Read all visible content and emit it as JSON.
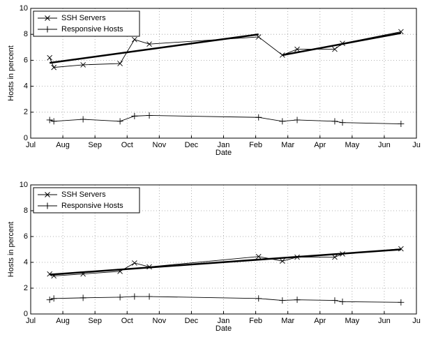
{
  "chart_data": [
    {
      "type": "line",
      "xlabel": "Date",
      "ylabel": "Hosts in percent",
      "xlim": [
        0,
        12
      ],
      "ylim": [
        0,
        10
      ],
      "yticks": [
        0,
        2,
        4,
        6,
        8,
        10
      ],
      "xticks": [
        {
          "value": 0,
          "label": "Jul"
        },
        {
          "value": 1,
          "label": "Aug"
        },
        {
          "value": 2,
          "label": "Sep"
        },
        {
          "value": 3,
          "label": "Oct"
        },
        {
          "value": 4,
          "label": "Nov"
        },
        {
          "value": 5,
          "label": "Dec"
        },
        {
          "value": 6,
          "label": "Jan"
        },
        {
          "value": 7,
          "label": "Feb"
        },
        {
          "value": 8,
          "label": "Mar"
        },
        {
          "value": 9,
          "label": "Apr"
        },
        {
          "value": 10,
          "label": "May"
        },
        {
          "value": 11,
          "label": "Jun"
        },
        {
          "value": 12,
          "label": "Ju"
        }
      ],
      "grid": true,
      "legend": "upper left",
      "series": [
        {
          "name": "SSH Servers",
          "color": "#000000",
          "marker": "x",
          "x": [
            0.59,
            0.72,
            1.63,
            2.78,
            3.23,
            3.69,
            7.09,
            7.83,
            8.29,
            9.46,
            9.7,
            11.52
          ],
          "values": [
            6.2,
            5.45,
            5.65,
            5.75,
            7.6,
            7.25,
            7.8,
            6.4,
            6.85,
            6.85,
            7.3,
            8.2
          ]
        },
        {
          "name": "Responsive Hosts",
          "color": "#000000",
          "marker": "+",
          "x": [
            0.59,
            0.72,
            1.63,
            2.78,
            3.23,
            3.69,
            7.09,
            7.83,
            8.29,
            9.46,
            9.7,
            11.52
          ],
          "values": [
            1.4,
            1.3,
            1.45,
            1.3,
            1.7,
            1.75,
            1.6,
            1.3,
            1.4,
            1.3,
            1.2,
            1.1
          ]
        }
      ],
      "fits": [
        {
          "color": "#000000",
          "x": [
            0.59,
            7.09
          ],
          "values": [
            5.8,
            8.0
          ]
        },
        {
          "color": "#000000",
          "x": [
            7.83,
            11.52
          ],
          "values": [
            6.4,
            8.1
          ]
        }
      ]
    },
    {
      "type": "line",
      "xlabel": "Date",
      "ylabel": "Hosts in percent",
      "xlim": [
        0,
        12
      ],
      "ylim": [
        0,
        10
      ],
      "yticks": [
        0,
        2,
        4,
        6,
        8,
        10
      ],
      "xticks": [
        {
          "value": 0,
          "label": "Jul"
        },
        {
          "value": 1,
          "label": "Aug"
        },
        {
          "value": 2,
          "label": "Sep"
        },
        {
          "value": 3,
          "label": "Oct"
        },
        {
          "value": 4,
          "label": "Nov"
        },
        {
          "value": 5,
          "label": "Dec"
        },
        {
          "value": 6,
          "label": "Jan"
        },
        {
          "value": 7,
          "label": "Feb"
        },
        {
          "value": 8,
          "label": "Mar"
        },
        {
          "value": 9,
          "label": "Apr"
        },
        {
          "value": 10,
          "label": "May"
        },
        {
          "value": 11,
          "label": "Jun"
        },
        {
          "value": 12,
          "label": "Ju"
        }
      ],
      "grid": true,
      "legend": "upper left",
      "series": [
        {
          "name": "SSH Servers",
          "color": "#000000",
          "marker": "x",
          "x": [
            0.59,
            0.72,
            1.63,
            2.78,
            3.23,
            3.69,
            7.09,
            7.83,
            8.29,
            9.46,
            9.7,
            11.52
          ],
          "values": [
            3.1,
            2.95,
            3.1,
            3.3,
            3.95,
            3.65,
            4.45,
            4.1,
            4.4,
            4.4,
            4.65,
            5.05
          ]
        },
        {
          "name": "Responsive Hosts",
          "color": "#000000",
          "marker": "+",
          "x": [
            0.59,
            0.72,
            1.63,
            2.78,
            3.23,
            3.69,
            7.09,
            7.83,
            8.29,
            9.46,
            9.7,
            11.52
          ],
          "values": [
            1.1,
            1.2,
            1.25,
            1.3,
            1.35,
            1.35,
            1.2,
            1.05,
            1.1,
            1.05,
            0.95,
            0.9
          ]
        }
      ],
      "fits": [
        {
          "color": "#000000",
          "x": [
            0.59,
            11.52
          ],
          "values": [
            3.05,
            5.0
          ]
        }
      ]
    }
  ]
}
